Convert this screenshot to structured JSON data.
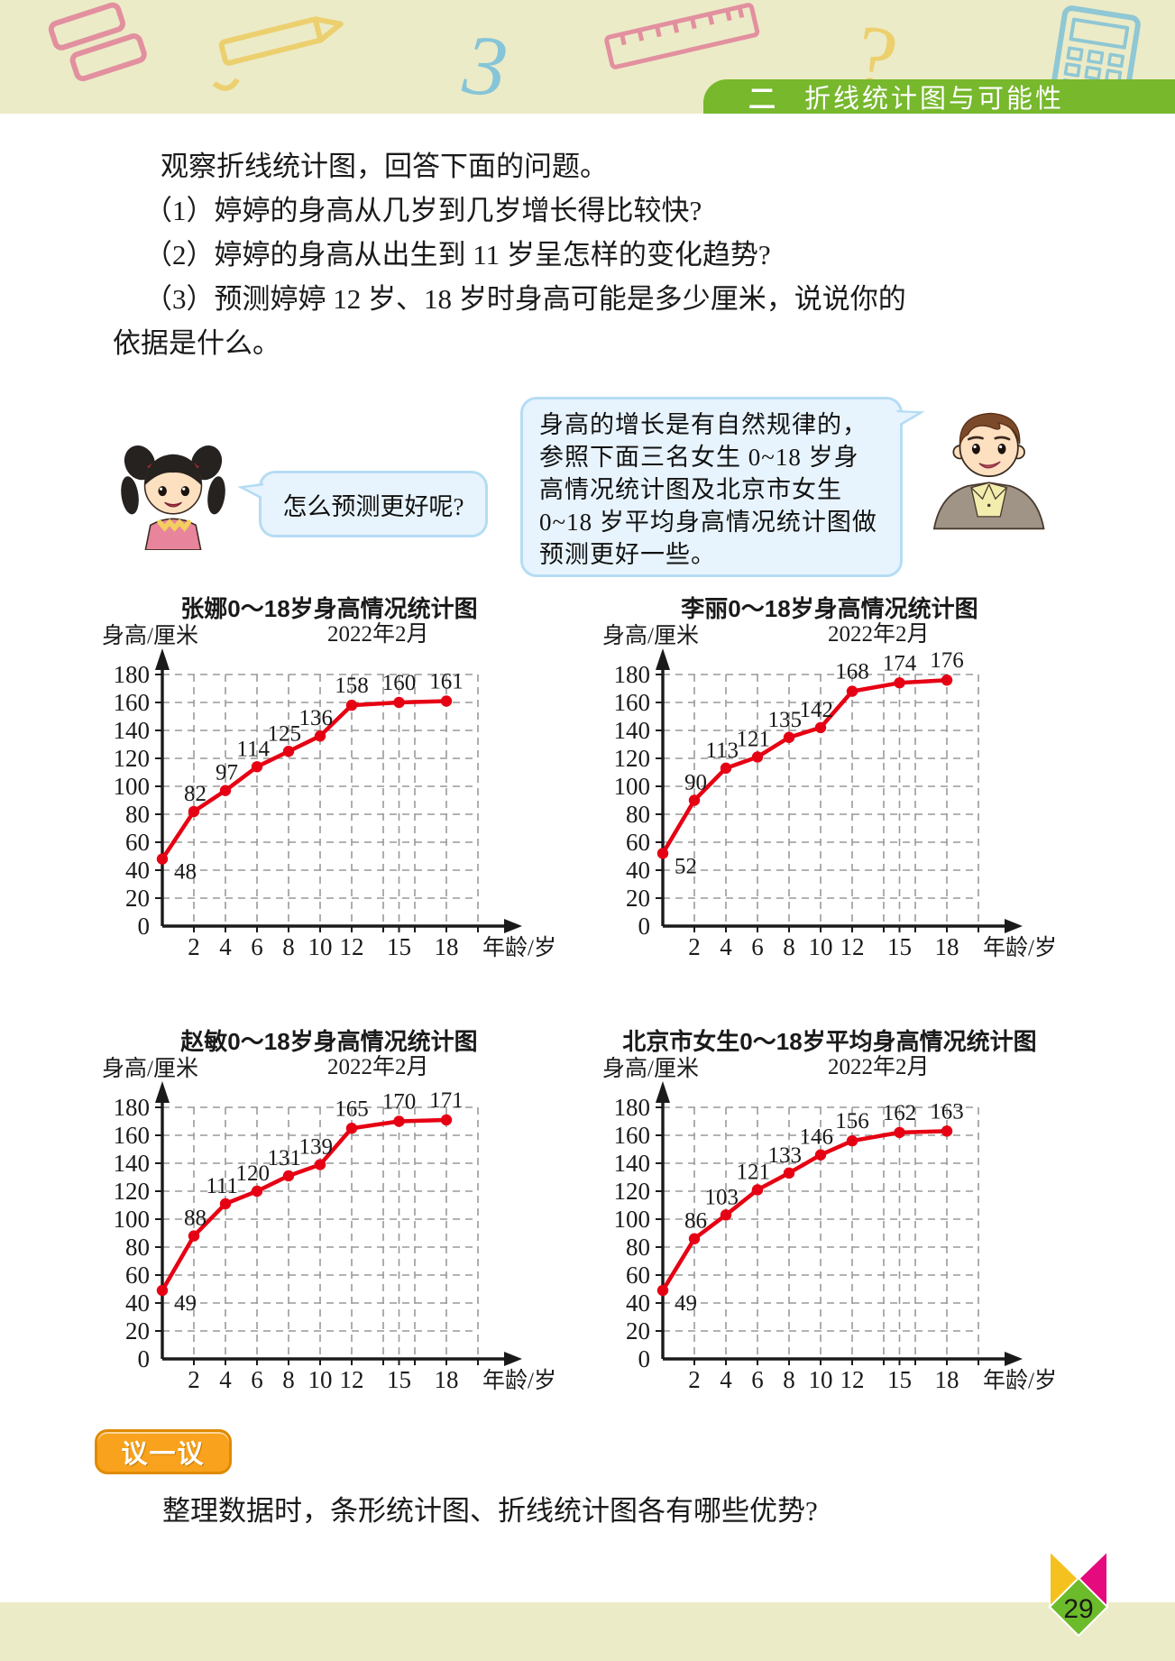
{
  "header": {
    "unit_marker": "二",
    "unit_title": "折线统计图与可能性",
    "doodles": {
      "three": "3",
      "question": "?"
    }
  },
  "intro": {
    "lead": "观察折线统计图，回答下面的问题。",
    "questions": [
      "（1）婷婷的身高从几岁到几岁增长得比较快?",
      "（2）婷婷的身高从出生到 11 岁呈怎样的变化趋势?",
      "（3）预测婷婷 12 岁、18 岁时身高可能是多少厘米，说说你的"
    ],
    "continuation": "依据是什么。"
  },
  "dialogue": {
    "girl_bubble": "怎么预测更好呢?",
    "teacher_bubble": "身高的增长是有自然规律的，参照下面三名女生 0~18 岁身高情况统计图及北京市女生 0~18 岁平均身高情况统计图做预测更好一些。"
  },
  "chart_data": [
    {
      "type": "line",
      "title": "张娜0～18岁身高情况统计图",
      "subtitle": "2022年2月",
      "ylabel": "身高/厘米",
      "xlabel": "年龄/岁",
      "ages": [
        0,
        2,
        4,
        6,
        8,
        10,
        12,
        15,
        18
      ],
      "values": [
        48,
        82,
        97,
        114,
        125,
        136,
        158,
        160,
        161
      ],
      "ylim": [
        0,
        180
      ],
      "y_step": 20,
      "grid": "dashed",
      "legend": "none"
    },
    {
      "type": "line",
      "title": "李丽0～18岁身高情况统计图",
      "subtitle": "2022年2月",
      "ylabel": "身高/厘米",
      "xlabel": "年龄/岁",
      "ages": [
        0,
        2,
        4,
        6,
        8,
        10,
        12,
        15,
        18
      ],
      "values": [
        52,
        90,
        113,
        121,
        135,
        142,
        168,
        174,
        176
      ],
      "ylim": [
        0,
        180
      ],
      "y_step": 20,
      "grid": "dashed",
      "legend": "none"
    },
    {
      "type": "line",
      "title": "赵敏0～18岁身高情况统计图",
      "subtitle": "2022年2月",
      "ylabel": "身高/厘米",
      "xlabel": "年龄/岁",
      "ages": [
        0,
        2,
        4,
        6,
        8,
        10,
        12,
        15,
        18
      ],
      "values": [
        49,
        88,
        111,
        120,
        131,
        139,
        165,
        170,
        171
      ],
      "ylim": [
        0,
        180
      ],
      "y_step": 20,
      "grid": "dashed",
      "legend": "none"
    },
    {
      "type": "line",
      "title": "北京市女生0～18岁平均身高情况统计图",
      "subtitle": "2022年2月",
      "ylabel": "身高/厘米",
      "xlabel": "年龄/岁",
      "ages": [
        0,
        2,
        4,
        6,
        8,
        10,
        12,
        15,
        18
      ],
      "values": [
        49,
        86,
        103,
        121,
        133,
        146,
        156,
        162,
        163
      ],
      "ylim": [
        0,
        180
      ],
      "y_step": 20,
      "grid": "dashed",
      "legend": "none"
    }
  ],
  "discuss": {
    "badge": "议一议",
    "question": "整理数据时，条形统计图、折线统计图各有哪些优势?"
  },
  "page_number": "29",
  "colors": {
    "line_red": "#e60013",
    "banner_green": "#77b82d",
    "band_yellow": "#ecebc7",
    "bubble_blue": "#e8f4fd",
    "bubble_border": "#b5dcf4",
    "badge_orange": "#f8a21d",
    "butterfly_yellow": "#f5c11e",
    "butterfly_magenta": "#e50a7e",
    "butterfly_green": "#6cbb2a",
    "grid_gray": "#999999"
  }
}
